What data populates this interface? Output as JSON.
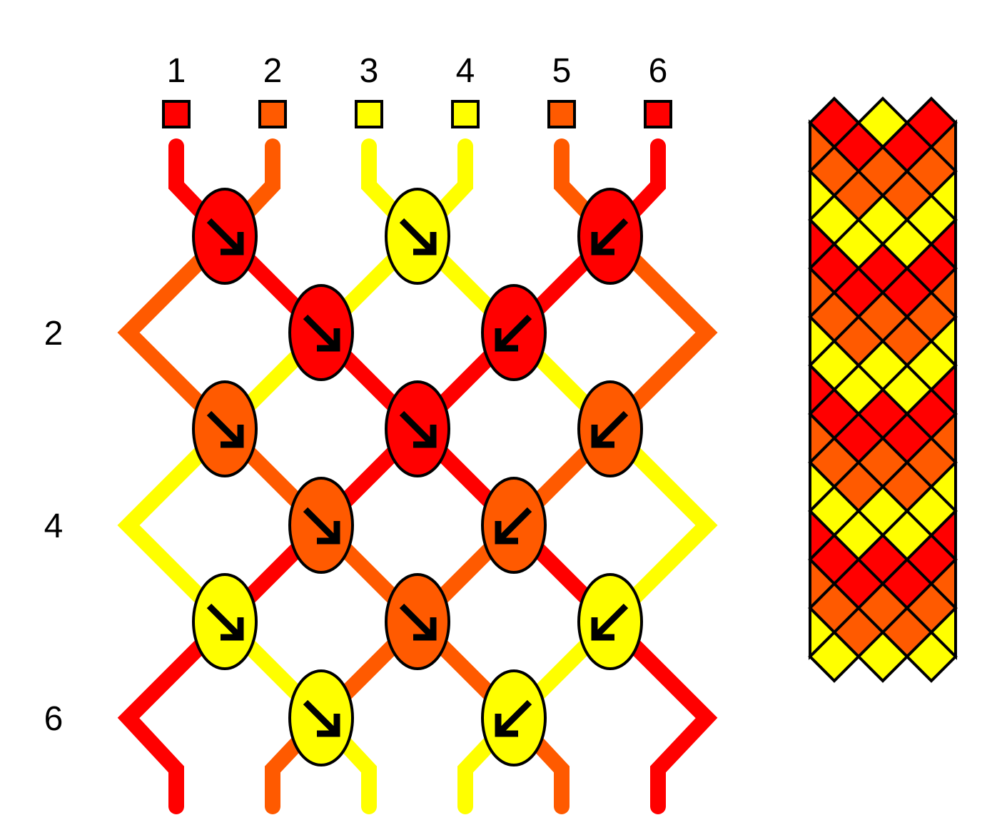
{
  "colors": {
    "red": "#ff0000",
    "orange": "#ff5a00",
    "yellow": "#ffff00",
    "outline": "#000000",
    "arrow": "#000000",
    "background": "#ffffff"
  },
  "strand_numbers": [
    "1",
    "2",
    "3",
    "4",
    "5",
    "6"
  ],
  "strand_colors": [
    "red",
    "orange",
    "yellow",
    "yellow",
    "orange",
    "red"
  ],
  "row_labels": [
    "2",
    "4",
    "6"
  ],
  "knot_rows": [
    [
      {
        "color": "red",
        "direction": "forward"
      },
      {
        "color": "yellow",
        "direction": "forward"
      },
      {
        "color": "red",
        "direction": "backward"
      }
    ],
    [
      {
        "color": "red",
        "direction": "forward"
      },
      {
        "color": "red",
        "direction": "backward"
      }
    ],
    [
      {
        "color": "orange",
        "direction": "forward"
      },
      {
        "color": "red",
        "direction": "forward"
      },
      {
        "color": "orange",
        "direction": "backward"
      }
    ],
    [
      {
        "color": "orange",
        "direction": "forward"
      },
      {
        "color": "orange",
        "direction": "backward"
      }
    ],
    [
      {
        "color": "yellow",
        "direction": "forward"
      },
      {
        "color": "orange",
        "direction": "forward"
      },
      {
        "color": "yellow",
        "direction": "backward"
      }
    ],
    [
      {
        "color": "yellow",
        "direction": "forward"
      },
      {
        "color": "yellow",
        "direction": "backward"
      }
    ]
  ],
  "final_strand_colors": [
    "red",
    "orange",
    "yellow",
    "yellow",
    "orange",
    "red"
  ],
  "preview_rows": [
    [
      "red",
      "yellow",
      "red"
    ],
    [
      "orange",
      "red",
      "red",
      "orange"
    ],
    [
      "orange",
      "orange",
      "orange"
    ],
    [
      "yellow",
      "orange",
      "orange",
      "yellow"
    ],
    [
      "yellow",
      "yellow",
      "yellow"
    ],
    [
      "red",
      "yellow",
      "yellow",
      "red"
    ],
    [
      "red",
      "red",
      "red"
    ],
    [
      "orange",
      "red",
      "red",
      "orange"
    ],
    [
      "orange",
      "orange",
      "orange"
    ],
    [
      "yellow",
      "orange",
      "orange",
      "yellow"
    ],
    [
      "yellow",
      "yellow",
      "yellow"
    ],
    [
      "red",
      "yellow",
      "yellow",
      "red"
    ],
    [
      "red",
      "red",
      "red"
    ],
    [
      "orange",
      "red",
      "red",
      "orange"
    ],
    [
      "orange",
      "orange",
      "orange"
    ],
    [
      "yellow",
      "orange",
      "orange",
      "yellow"
    ],
    [
      "yellow",
      "yellow",
      "yellow"
    ],
    [
      "red",
      "yellow",
      "yellow",
      "red"
    ],
    [
      "red",
      "red",
      "red"
    ],
    [
      "orange",
      "red",
      "red",
      "orange"
    ],
    [
      "orange",
      "orange",
      "orange"
    ],
    [
      "yellow",
      "orange",
      "orange",
      "yellow"
    ],
    [
      "yellow",
      "yellow",
      "yellow"
    ]
  ]
}
